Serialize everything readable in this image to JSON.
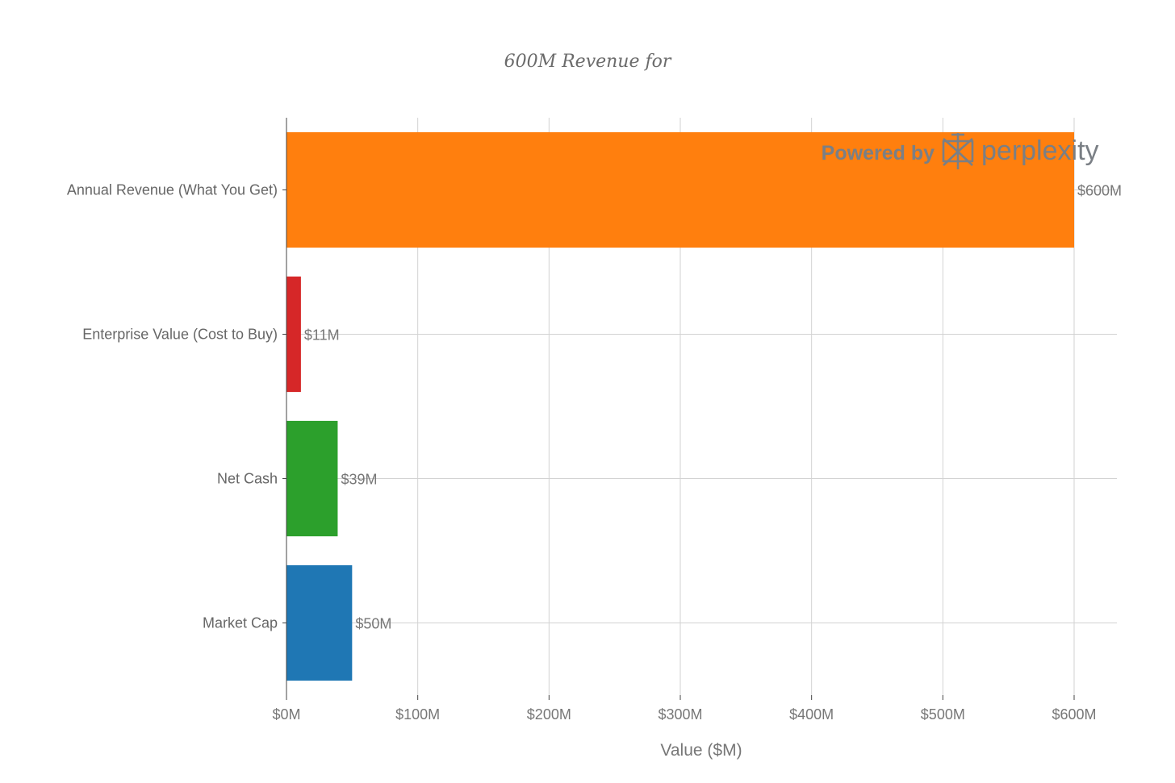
{
  "chart_data": {
    "type": "bar",
    "orientation": "horizontal",
    "title": "600M Revenue for",
    "xlabel": "Value ($M)",
    "ylabel": "",
    "xlim": [
      0,
      600
    ],
    "x_ticks": [
      0,
      100,
      200,
      300,
      400,
      500,
      600
    ],
    "x_tick_labels": [
      "$0M",
      "$100M",
      "$200M",
      "$300M",
      "$400M",
      "$500M",
      "$600M"
    ],
    "grid": true,
    "categories": [
      "Annual Revenue (What You Get)",
      "Enterprise Value (Cost to Buy)",
      "Net Cash",
      "Market Cap"
    ],
    "values": [
      600,
      11,
      39,
      50
    ],
    "data_labels": [
      "$600M",
      "$11M",
      "$39M",
      "$50M"
    ],
    "colors": [
      "#ff7f0e",
      "#d62728",
      "#2ca02c",
      "#1f77b4"
    ]
  },
  "watermark": {
    "prefix": "Powered by",
    "brand": "perplexity",
    "icon": "perplexity-logo-icon"
  }
}
